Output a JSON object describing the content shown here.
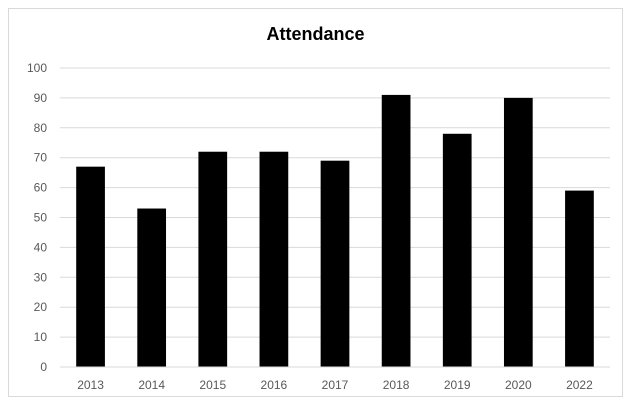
{
  "chart_data": {
    "type": "bar",
    "title": "Attendance",
    "categories": [
      "2013",
      "2014",
      "2015",
      "2016",
      "2017",
      "2018",
      "2019",
      "2020",
      "2022"
    ],
    "values": [
      67,
      53,
      72,
      72,
      69,
      91,
      78,
      90,
      59
    ],
    "ylim": [
      0,
      100
    ],
    "yticks": [
      0,
      10,
      20,
      30,
      40,
      50,
      60,
      70,
      80,
      90,
      100
    ],
    "grid": true,
    "legend": "none",
    "bar_color": "#000000",
    "grid_color": "#d9d9d9"
  }
}
